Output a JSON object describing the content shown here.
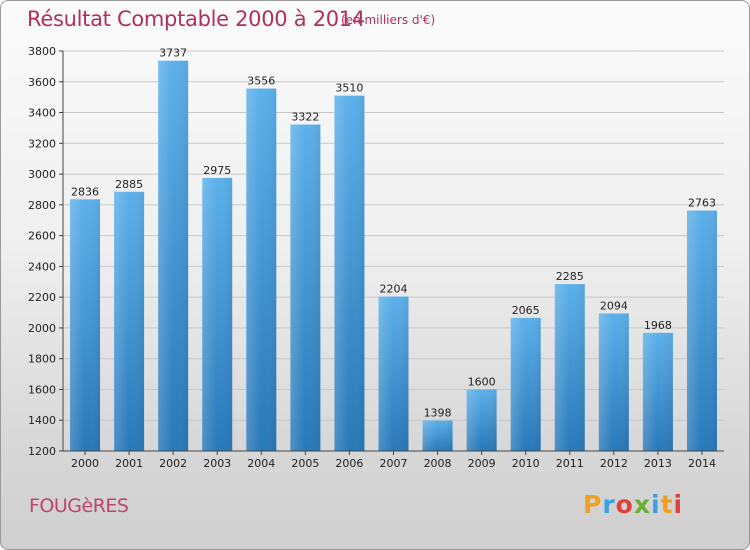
{
  "header": {
    "title": "Résultat Comptable 2000 à 2014",
    "subtitle": "(en milliers d'€)"
  },
  "footer": {
    "commune": "FOUGèRES",
    "logo_letters": [
      "P",
      "r",
      "o",
      "x",
      "i",
      "t",
      "i"
    ],
    "logo_colors": [
      "#f0a020",
      "#3aa0e0",
      "#e0403a",
      "#6ab030",
      "#3aa0e0",
      "#f0a020",
      "#e0403a"
    ]
  },
  "colors": {
    "bar_top": "#5cb0ea",
    "bar_bottom": "#2878b8",
    "title": "#b03060",
    "grid": "#c8c8c8"
  },
  "chart_data": {
    "type": "bar",
    "title": "Résultat Comptable 2000 à 2014",
    "subtitle": "(en milliers d'€)",
    "xlabel": "",
    "ylabel": "",
    "categories": [
      "2000",
      "2001",
      "2002",
      "2003",
      "2004",
      "2005",
      "2006",
      "2007",
      "2008",
      "2009",
      "2010",
      "2011",
      "2012",
      "2013",
      "2014"
    ],
    "values": [
      2836,
      2885,
      3737,
      2975,
      3556,
      3322,
      3510,
      2204,
      1398,
      1600,
      2065,
      2285,
      2094,
      1968,
      2763
    ],
    "ylim": [
      1200,
      3800
    ],
    "yticks": [
      1200,
      1400,
      1600,
      1800,
      2000,
      2200,
      2400,
      2600,
      2800,
      3000,
      3200,
      3400,
      3600,
      3800
    ],
    "grid": true,
    "legend": "none"
  }
}
